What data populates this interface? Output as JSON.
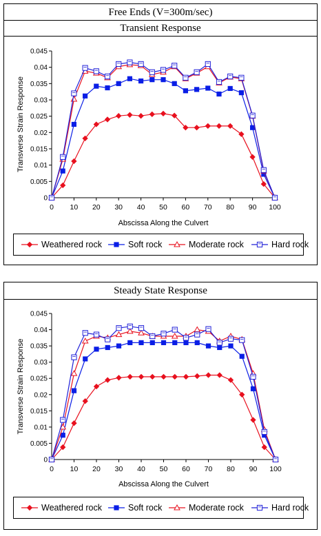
{
  "header": {
    "title": "Free Ends (V=300m/sec)"
  },
  "chart_data": [
    {
      "type": "line",
      "title": "Transient Response",
      "xlabel": "Abscissa Along the Culvert",
      "ylabel": "Transverse Strain Response",
      "xlim": [
        0,
        100
      ],
      "ylim": [
        0,
        0.045
      ],
      "xticks": [
        "0",
        "10",
        "20",
        "30",
        "40",
        "50",
        "60",
        "70",
        "80",
        "90",
        "100"
      ],
      "yticks": [
        "0",
        "0.005",
        "0.01",
        "0.015",
        "0.02",
        "0.025",
        "0.03",
        "0.035",
        "0.04",
        "0.045"
      ],
      "grid": false,
      "legend_position": "bottom",
      "x": [
        0,
        5,
        10,
        15,
        20,
        25,
        30,
        35,
        40,
        45,
        50,
        55,
        60,
        65,
        70,
        75,
        80,
        85,
        90,
        95,
        100
      ],
      "series": [
        {
          "name": "Weathered rock",
          "color": "#e8101e",
          "marker": "diamond-filled",
          "values": [
            0,
            0.0038,
            0.0112,
            0.0182,
            0.0225,
            0.024,
            0.0251,
            0.0254,
            0.0251,
            0.0256,
            0.0258,
            0.0252,
            0.0215,
            0.0215,
            0.022,
            0.022,
            0.022,
            0.0195,
            0.0125,
            0.0042,
            0
          ]
        },
        {
          "name": "Soft rock",
          "color": "#0a1ee6",
          "marker": "square-filled",
          "values": [
            0,
            0.0082,
            0.0225,
            0.0312,
            0.0342,
            0.0337,
            0.035,
            0.0365,
            0.0358,
            0.0362,
            0.0362,
            0.035,
            0.0328,
            0.0332,
            0.0336,
            0.0318,
            0.0335,
            0.0322,
            0.0215,
            0.0072,
            0
          ]
        },
        {
          "name": "Moderate rock",
          "color": "#e8101e",
          "marker": "triangle-open",
          "values": [
            0,
            0.0118,
            0.0302,
            0.0388,
            0.0382,
            0.0368,
            0.0402,
            0.0408,
            0.0405,
            0.0378,
            0.0385,
            0.0402,
            0.0365,
            0.0382,
            0.0402,
            0.0352,
            0.037,
            0.0365,
            0.025,
            0.0082,
            0
          ]
        },
        {
          "name": "Hard rock",
          "color": "#2020d8",
          "marker": "square-open",
          "values": [
            0,
            0.0125,
            0.032,
            0.0398,
            0.0388,
            0.0372,
            0.041,
            0.0415,
            0.041,
            0.0385,
            0.0392,
            0.0405,
            0.0368,
            0.0385,
            0.041,
            0.0355,
            0.0372,
            0.0368,
            0.0252,
            0.0085,
            0
          ]
        }
      ]
    },
    {
      "type": "line",
      "title": "Steady State Response",
      "xlabel": "Abscissa Along the Culvert",
      "ylabel": "Transverse Strain Response",
      "xlim": [
        0,
        100
      ],
      "ylim": [
        0,
        0.045
      ],
      "xticks": [
        "0",
        "10",
        "20",
        "30",
        "40",
        "50",
        "60",
        "70",
        "80",
        "90",
        "100"
      ],
      "yticks": [
        "0",
        "0.005",
        "0.01",
        "0.015",
        "0.02",
        "0.025",
        "0.03",
        "0.035",
        "0.04",
        "0.045"
      ],
      "grid": false,
      "legend_position": "bottom",
      "x": [
        0,
        5,
        10,
        15,
        20,
        25,
        30,
        35,
        40,
        45,
        50,
        55,
        60,
        65,
        70,
        75,
        80,
        85,
        90,
        95,
        100
      ],
      "series": [
        {
          "name": "Weathered rock",
          "color": "#e8101e",
          "marker": "diamond-filled",
          "values": [
            0,
            0.0038,
            0.0112,
            0.018,
            0.0225,
            0.0245,
            0.0252,
            0.0255,
            0.0255,
            0.0255,
            0.0255,
            0.0255,
            0.0255,
            0.0257,
            0.026,
            0.026,
            0.0245,
            0.02,
            0.0122,
            0.0038,
            0
          ]
        },
        {
          "name": "Soft rock",
          "color": "#0a1ee6",
          "marker": "square-filled",
          "values": [
            0,
            0.0075,
            0.0212,
            0.031,
            0.034,
            0.0345,
            0.035,
            0.036,
            0.036,
            0.036,
            0.036,
            0.036,
            0.036,
            0.036,
            0.035,
            0.0345,
            0.035,
            0.0318,
            0.0218,
            0.0075,
            0
          ]
        },
        {
          "name": "Moderate rock",
          "color": "#e8101e",
          "marker": "triangle-open",
          "values": [
            0,
            0.01,
            0.0265,
            0.0365,
            0.038,
            0.0375,
            0.0385,
            0.0395,
            0.039,
            0.038,
            0.038,
            0.038,
            0.038,
            0.04,
            0.0395,
            0.0365,
            0.038,
            0.037,
            0.0265,
            0.0092,
            0
          ]
        },
        {
          "name": "Hard rock",
          "color": "#2020d8",
          "marker": "square-open",
          "values": [
            0,
            0.0122,
            0.0315,
            0.039,
            0.0385,
            0.037,
            0.0405,
            0.041,
            0.0405,
            0.038,
            0.0388,
            0.04,
            0.0375,
            0.0385,
            0.0402,
            0.036,
            0.0372,
            0.0368,
            0.0255,
            0.0085,
            0
          ]
        }
      ]
    }
  ]
}
